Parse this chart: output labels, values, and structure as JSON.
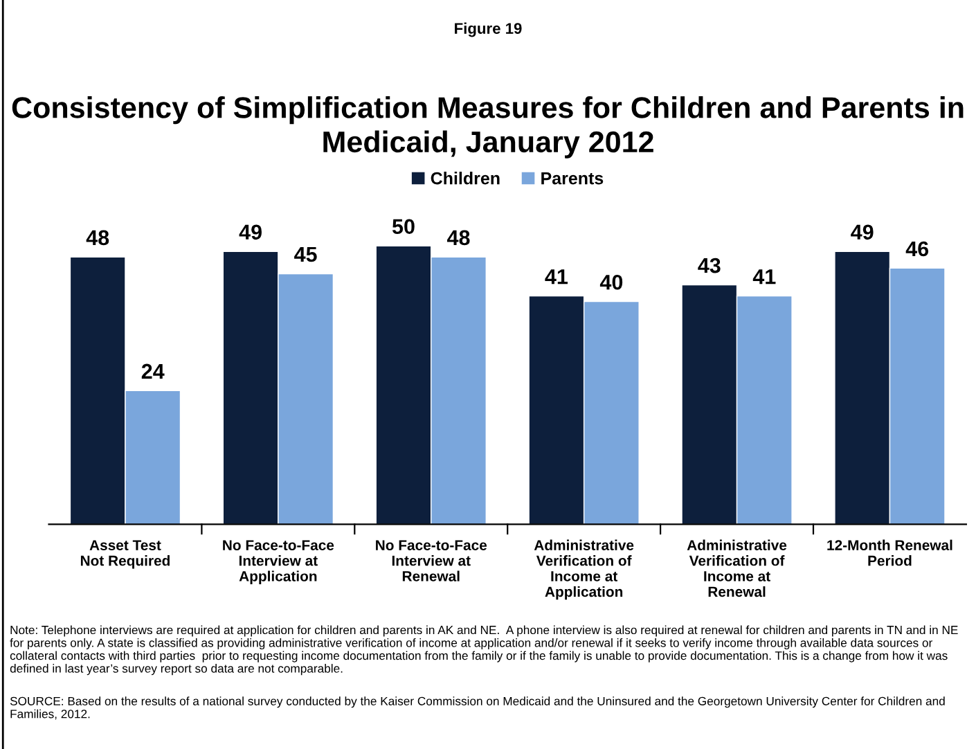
{
  "chart_data": {
    "type": "bar",
    "title": "Consistency of Simplification Measures for Children and Parents in Medicaid, January 2012",
    "subtitle": "Figure 19",
    "categories": [
      "Asset Test\nNot Required",
      "No Face-to-Face\nInterview at\nApplication",
      "No Face-to-Face\nInterview at\nRenewal",
      "Administrative\nVerification of\nIncome at\nApplication",
      "Administrative\nVerification of\nIncome at\nRenewal",
      "12-Month Renewal\nPeriod"
    ],
    "series": [
      {
        "name": "Children",
        "color": "#0d1f3c",
        "values": [
          48,
          49,
          50,
          41,
          43,
          49
        ]
      },
      {
        "name": "Parents",
        "color": "#7aa6dc",
        "values": [
          24,
          45,
          48,
          40,
          41,
          46
        ]
      }
    ],
    "data_labels": true,
    "legend": "top",
    "grid": false,
    "annotations": [
      "Note: Telephone interviews are required at application for children and parents in AK and NE.  A phone interview is also required at renewal for children and parents in TN and in NE for parents only. A state is classified as providing administrative verification of income at application and/or renewal if it seeks to verify income through available data sources or collateral contacts with third parties  prior to requesting income documentation from the family or if the family is unable to provide documentation. This is a change from how it was defined in last year’s survey report so data are not comparable.",
      "SOURCE: Based on the results of a national survey conducted by the Kaiser Commission on Medicaid and the Uninsured and the Georgetown University Center for Children and Families, 2012."
    ]
  }
}
